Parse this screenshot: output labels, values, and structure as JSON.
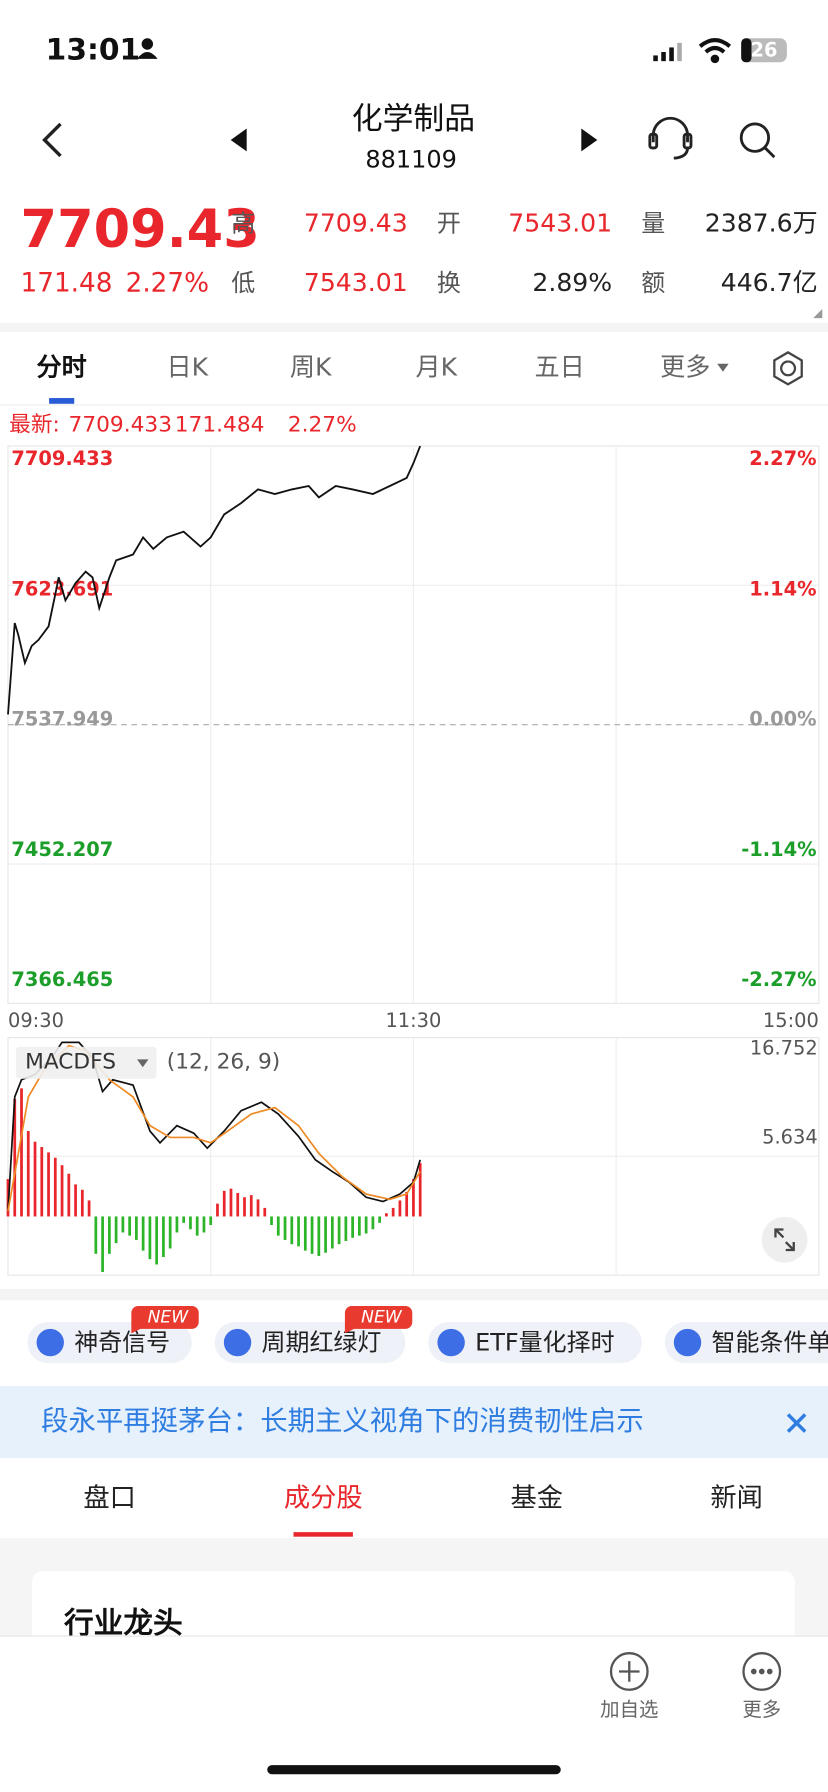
{
  "status": {
    "time": "13:01",
    "battery": "26"
  },
  "header": {
    "title": "化学制品",
    "code": "881109"
  },
  "quote": {
    "price": "7709.43",
    "change": "171.48",
    "pct": "2.27%",
    "color": "#e8262b",
    "fields": [
      {
        "label": "高",
        "value": "7709.43",
        "color": "#e8262b"
      },
      {
        "label": "开",
        "value": "7543.01",
        "color": "#e8262b"
      },
      {
        "label": "量",
        "value": "2387.6万",
        "color": "#222222"
      },
      {
        "label": "低",
        "value": "7543.01",
        "color": "#e8262b"
      },
      {
        "label": "换",
        "value": "2.89%",
        "color": "#222222"
      },
      {
        "label": "额",
        "value": "446.7亿",
        "color": "#222222"
      }
    ]
  },
  "chart_tabs": {
    "items": [
      "分时",
      "日K",
      "周K",
      "月K",
      "五日",
      "更多"
    ],
    "active": 0
  },
  "latest": {
    "label": "最新:",
    "price": "7709.433",
    "change": "171.484",
    "pct": "2.27%"
  },
  "chart_data": [
    {
      "type": "line",
      "x": [
        0,
        2,
        3,
        5,
        7,
        9,
        12,
        14,
        15,
        17,
        20,
        23,
        25,
        27,
        30,
        32,
        37,
        40,
        43,
        47,
        52,
        57,
        60,
        64,
        69,
        74,
        79,
        84,
        89,
        92,
        97,
        102,
        108,
        113,
        118,
        120,
        122
      ],
      "series": [
        {
          "color": "#111111",
          "values": [
            7544.3,
            7600.5,
            7593.5,
            7575.9,
            7586.4,
            7590,
            7598.4,
            7618.1,
            7628.6,
            7614.5,
            7625.1,
            7632.1,
            7628.6,
            7609.6,
            7628.6,
            7639.1,
            7642.7,
            7653.2,
            7646.2,
            7653.2,
            7656.7,
            7647.6,
            7653.2,
            7667.3,
            7674.3,
            7682.7,
            7679.9,
            7682.7,
            7684.8,
            7677.8,
            7684.8,
            7682.7,
            7679.9,
            7684.8,
            7689.8,
            7698.9,
            7709.4
          ]
        }
      ],
      "xlim": [
        0,
        240
      ],
      "xticks": [
        {
          "value": 0,
          "label": "09:30"
        },
        {
          "value": 120,
          "label": "11:30"
        },
        {
          "value": 240,
          "label": "15:00"
        }
      ],
      "ylim": [
        7366.465,
        7709.433
      ],
      "yticks": [
        7366.465,
        7452.207,
        7537.949,
        7623.691,
        7709.433
      ],
      "y2lim": [
        -2.27,
        2.27
      ],
      "y2ticks": [
        {
          "value": -2.27,
          "label": "-2.27%"
        },
        {
          "value": -1.14,
          "label": "-1.14%"
        },
        {
          "value": 0,
          "label": "0.00%"
        },
        {
          "value": 1.14,
          "label": "1.14%"
        },
        {
          "value": 2.27,
          "label": "2.27%"
        }
      ],
      "up_color": "#e8262b",
      "down_color": "#1c9e2a",
      "flat_color": "#999999"
    },
    {
      "type": "macd",
      "indicator": "MACDFS",
      "params": "(12, 26, 9)",
      "xlim": [
        0,
        240
      ],
      "ylim": [
        -5.5,
        16.752
      ],
      "yticks": [
        5.634,
        16.752
      ],
      "up_color": "#e8262b",
      "down_color": "#2db52a",
      "histogram": {
        "x": [
          0,
          2,
          4,
          6,
          8,
          10,
          12,
          14,
          16,
          18,
          20,
          22,
          24,
          26,
          28,
          30,
          32,
          34,
          36,
          38,
          40,
          42,
          44,
          46,
          48,
          50,
          52,
          54,
          56,
          58,
          60,
          62,
          64,
          66,
          68,
          70,
          72,
          74,
          76,
          78,
          80,
          82,
          84,
          86,
          88,
          90,
          92,
          94,
          96,
          98,
          100,
          102,
          104,
          106,
          108,
          110,
          112,
          114,
          116,
          118,
          120,
          122
        ],
        "values": [
          3.5,
          11,
          12,
          8,
          7,
          6.5,
          6,
          5.5,
          4.8,
          4,
          3,
          2.5,
          1.5,
          -3.5,
          -5.2,
          -3.5,
          -2.5,
          -1.5,
          -1.8,
          -2.2,
          -3.2,
          -4,
          -4.5,
          -3.8,
          -3,
          -1.5,
          -0.6,
          -1.2,
          -1.8,
          -1.5,
          -0.8,
          1.2,
          2.4,
          2.6,
          2.2,
          1.8,
          2,
          1.6,
          0.8,
          -0.8,
          -1.8,
          -2.2,
          -2.6,
          -2.8,
          -3.2,
          -3.5,
          -3.7,
          -3.4,
          -3,
          -2.6,
          -2.3,
          -2,
          -1.8,
          -1.6,
          -1.2,
          -0.6,
          0.3,
          0.8,
          1.5,
          2.3,
          3.5,
          5
        ]
      },
      "series": [
        {
          "color": "#111111",
          "x": [
            0,
            2,
            4,
            8,
            13,
            16,
            21,
            25,
            28,
            31,
            37,
            42,
            45,
            50,
            55,
            59,
            64,
            69,
            75,
            80,
            86,
            91,
            96,
            101,
            106,
            111,
            116,
            120,
            122
          ],
          "values": [
            0.5,
            11.2,
            12.8,
            13.3,
            14.9,
            16.3,
            16.3,
            14.9,
            11.7,
            12.8,
            12.3,
            8.0,
            6.9,
            8.5,
            7.8,
            6.4,
            8.0,
            9.9,
            10.7,
            9.6,
            7.5,
            5.3,
            4.2,
            3.2,
            1.8,
            1.4,
            2.1,
            3.2,
            5.3
          ]
        },
        {
          "color": "#f08a24",
          "x": [
            0,
            3,
            6,
            11,
            18,
            23,
            30,
            37,
            42,
            48,
            55,
            60,
            65,
            72,
            79,
            86,
            92,
            99,
            106,
            113,
            118,
            122
          ],
          "values": [
            0.5,
            5.8,
            11.2,
            13.9,
            16.0,
            15.5,
            12.8,
            11.2,
            8.5,
            7.4,
            7.4,
            6.9,
            8.0,
            9.6,
            10.2,
            8.5,
            5.9,
            3.7,
            2.1,
            1.6,
            2.1,
            4.2
          ]
        }
      ]
    }
  ],
  "chips": [
    {
      "label": "神奇信号",
      "badge": "NEW"
    },
    {
      "label": "周期红绿灯",
      "badge": "NEW"
    },
    {
      "label": "ETF量化择时"
    },
    {
      "label": "智能条件单"
    }
  ],
  "news": "段永平再挺茅台：长期主义视角下的消费韧性启示",
  "sections": {
    "items": [
      "盘口",
      "成分股",
      "基金",
      "新闻"
    ],
    "active": 1
  },
  "card": {
    "title": "行业龙头"
  },
  "bottom_bar": [
    "加自选",
    "更多"
  ]
}
